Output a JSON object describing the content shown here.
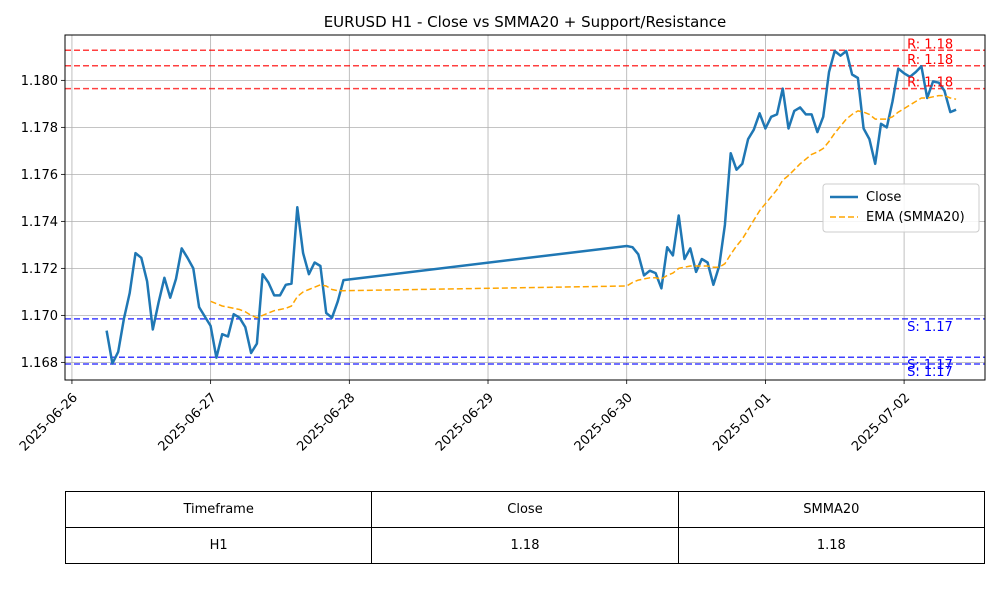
{
  "chart_data": {
    "type": "line",
    "title": "EURUSD H1 - Close vs SMMA20 + Support/Resistance",
    "xlabel": "",
    "ylabel": "",
    "xlim": [
      "2025-06-25T22:48",
      "2025-07-02T14:00"
    ],
    "ylim": [
      1.16725,
      1.18193
    ],
    "grid": true,
    "legend_position": "center-right",
    "x_ticks": [
      "2025-06-26",
      "2025-06-27",
      "2025-06-28",
      "2025-06-29",
      "2025-06-30",
      "2025-07-01",
      "2025-07-02"
    ],
    "y_ticks": [
      "1.168",
      "1.170",
      "1.172",
      "1.174",
      "1.176",
      "1.178",
      "1.180"
    ],
    "series": [
      {
        "name": "Close",
        "style": "solid",
        "color": "#1f77b4",
        "points": [
          [
            "2025-06-26T06:00",
            1.16935
          ],
          [
            "2025-06-26T07:00",
            1.16795
          ],
          [
            "2025-06-26T08:00",
            1.16845
          ],
          [
            "2025-06-26T09:00",
            1.16985
          ],
          [
            "2025-06-26T10:00",
            1.17095
          ],
          [
            "2025-06-26T11:00",
            1.17265
          ],
          [
            "2025-06-26T12:00",
            1.17245
          ],
          [
            "2025-06-26T13:00",
            1.17145
          ],
          [
            "2025-06-26T14:00",
            1.1694
          ],
          [
            "2025-06-26T15:00",
            1.17055
          ],
          [
            "2025-06-26T16:00",
            1.1716
          ],
          [
            "2025-06-26T17:00",
            1.17075
          ],
          [
            "2025-06-26T18:00",
            1.17155
          ],
          [
            "2025-06-26T19:00",
            1.17285
          ],
          [
            "2025-06-26T20:00",
            1.17245
          ],
          [
            "2025-06-26T21:00",
            1.172
          ],
          [
            "2025-06-26T22:00",
            1.17035
          ],
          [
            "2025-06-26T23:00",
            1.16995
          ],
          [
            "2025-06-27T00:00",
            1.16955
          ],
          [
            "2025-06-27T01:00",
            1.1682
          ],
          [
            "2025-06-27T02:00",
            1.1692
          ],
          [
            "2025-06-27T03:00",
            1.1691
          ],
          [
            "2025-06-27T04:00",
            1.17005
          ],
          [
            "2025-06-27T05:00",
            1.1699
          ],
          [
            "2025-06-27T06:00",
            1.1695
          ],
          [
            "2025-06-27T07:00",
            1.1684
          ],
          [
            "2025-06-27T08:00",
            1.1688
          ],
          [
            "2025-06-27T09:00",
            1.17175
          ],
          [
            "2025-06-27T10:00",
            1.1714
          ],
          [
            "2025-06-27T11:00",
            1.17085
          ],
          [
            "2025-06-27T12:00",
            1.17085
          ],
          [
            "2025-06-27T13:00",
            1.1713
          ],
          [
            "2025-06-27T14:00",
            1.17135
          ],
          [
            "2025-06-27T15:00",
            1.1746
          ],
          [
            "2025-06-27T16:00",
            1.17265
          ],
          [
            "2025-06-27T17:00",
            1.17175
          ],
          [
            "2025-06-27T18:00",
            1.17225
          ],
          [
            "2025-06-27T19:00",
            1.1721
          ],
          [
            "2025-06-27T20:00",
            1.1701
          ],
          [
            "2025-06-27T21:00",
            1.1699
          ],
          [
            "2025-06-27T22:00",
            1.1706
          ],
          [
            "2025-06-27T23:00",
            1.1715
          ],
          [
            "2025-06-30T00:00",
            1.17295
          ],
          [
            "2025-06-30T01:00",
            1.1729
          ],
          [
            "2025-06-30T02:00",
            1.1726
          ],
          [
            "2025-06-30T03:00",
            1.1717
          ],
          [
            "2025-06-30T04:00",
            1.1719
          ],
          [
            "2025-06-30T05:00",
            1.1718
          ],
          [
            "2025-06-30T06:00",
            1.17115
          ],
          [
            "2025-06-30T07:00",
            1.1729
          ],
          [
            "2025-06-30T08:00",
            1.17255
          ],
          [
            "2025-06-30T09:00",
            1.17425
          ],
          [
            "2025-06-30T10:00",
            1.1724
          ],
          [
            "2025-06-30T11:00",
            1.17285
          ],
          [
            "2025-06-30T12:00",
            1.17185
          ],
          [
            "2025-06-30T13:00",
            1.1724
          ],
          [
            "2025-06-30T14:00",
            1.17225
          ],
          [
            "2025-06-30T15:00",
            1.1713
          ],
          [
            "2025-06-30T16:00",
            1.1721
          ],
          [
            "2025-06-30T17:00",
            1.17385
          ],
          [
            "2025-06-30T18:00",
            1.1769
          ],
          [
            "2025-06-30T19:00",
            1.1762
          ],
          [
            "2025-06-30T20:00",
            1.17645
          ],
          [
            "2025-06-30T21:00",
            1.1775
          ],
          [
            "2025-06-30T22:00",
            1.1779
          ],
          [
            "2025-06-30T23:00",
            1.1786
          ],
          [
            "2025-07-01T00:00",
            1.17795
          ],
          [
            "2025-07-01T01:00",
            1.17845
          ],
          [
            "2025-07-01T02:00",
            1.17855
          ],
          [
            "2025-07-01T03:00",
            1.17965
          ],
          [
            "2025-07-01T04:00",
            1.17795
          ],
          [
            "2025-07-01T05:00",
            1.1787
          ],
          [
            "2025-07-01T06:00",
            1.17885
          ],
          [
            "2025-07-01T07:00",
            1.17855
          ],
          [
            "2025-07-01T08:00",
            1.17855
          ],
          [
            "2025-07-01T09:00",
            1.1778
          ],
          [
            "2025-07-01T10:00",
            1.17845
          ],
          [
            "2025-07-01T11:00",
            1.18035
          ],
          [
            "2025-07-01T12:00",
            1.18125
          ],
          [
            "2025-07-01T13:00",
            1.18105
          ],
          [
            "2025-07-01T14:00",
            1.18125
          ],
          [
            "2025-07-01T15:00",
            1.18025
          ],
          [
            "2025-07-01T16:00",
            1.1801
          ],
          [
            "2025-07-01T17:00",
            1.17795
          ],
          [
            "2025-07-01T18:00",
            1.1775
          ],
          [
            "2025-07-01T19:00",
            1.17645
          ],
          [
            "2025-07-01T20:00",
            1.17815
          ],
          [
            "2025-07-01T21:00",
            1.178
          ],
          [
            "2025-07-01T22:00",
            1.1791
          ],
          [
            "2025-07-01T23:00",
            1.1805
          ],
          [
            "2025-07-02T00:00",
            1.1803
          ],
          [
            "2025-07-02T01:00",
            1.18015
          ],
          [
            "2025-07-02T02:00",
            1.18035
          ],
          [
            "2025-07-02T03:00",
            1.1806
          ],
          [
            "2025-07-02T04:00",
            1.17925
          ],
          [
            "2025-07-02T05:00",
            1.17995
          ],
          [
            "2025-07-02T06:00",
            1.1799
          ],
          [
            "2025-07-02T07:00",
            1.17955
          ],
          [
            "2025-07-02T08:00",
            1.17865
          ],
          [
            "2025-07-02T09:00",
            1.17875
          ]
        ]
      },
      {
        "name": "EMA (SMMA20)",
        "style": "dashed",
        "color": "#ffa500",
        "points": [
          [
            "2025-06-27T00:00",
            1.1706
          ],
          [
            "2025-06-27T01:00",
            1.1705
          ],
          [
            "2025-06-27T02:00",
            1.1704
          ],
          [
            "2025-06-27T03:00",
            1.17035
          ],
          [
            "2025-06-27T04:00",
            1.1703
          ],
          [
            "2025-06-27T05:00",
            1.17025
          ],
          [
            "2025-06-27T06:00",
            1.17015
          ],
          [
            "2025-06-27T07:00",
            1.17
          ],
          [
            "2025-06-27T08:00",
            1.1699
          ],
          [
            "2025-06-27T09:00",
            1.17
          ],
          [
            "2025-06-27T10:00",
            1.1701
          ],
          [
            "2025-06-27T11:00",
            1.1702
          ],
          [
            "2025-06-27T12:00",
            1.17025
          ],
          [
            "2025-06-27T13:00",
            1.1703
          ],
          [
            "2025-06-27T14:00",
            1.1704
          ],
          [
            "2025-06-27T15:00",
            1.1708
          ],
          [
            "2025-06-27T16:00",
            1.171
          ],
          [
            "2025-06-27T17:00",
            1.1711
          ],
          [
            "2025-06-27T18:00",
            1.1712
          ],
          [
            "2025-06-27T19:00",
            1.1713
          ],
          [
            "2025-06-27T20:00",
            1.17125
          ],
          [
            "2025-06-27T21:00",
            1.1711
          ],
          [
            "2025-06-27T22:00",
            1.17105
          ],
          [
            "2025-06-27T23:00",
            1.17105
          ],
          [
            "2025-06-30T00:00",
            1.17125
          ],
          [
            "2025-06-30T01:00",
            1.1714
          ],
          [
            "2025-06-30T02:00",
            1.1715
          ],
          [
            "2025-06-30T03:00",
            1.17155
          ],
          [
            "2025-06-30T04:00",
            1.1716
          ],
          [
            "2025-06-30T05:00",
            1.1716
          ],
          [
            "2025-06-30T06:00",
            1.17155
          ],
          [
            "2025-06-30T07:00",
            1.1717
          ],
          [
            "2025-06-30T08:00",
            1.1718
          ],
          [
            "2025-06-30T09:00",
            1.172
          ],
          [
            "2025-06-30T10:00",
            1.17205
          ],
          [
            "2025-06-30T11:00",
            1.1721
          ],
          [
            "2025-06-30T12:00",
            1.1721
          ],
          [
            "2025-06-30T13:00",
            1.1721
          ],
          [
            "2025-06-30T14:00",
            1.1721
          ],
          [
            "2025-06-30T15:00",
            1.17205
          ],
          [
            "2025-06-30T16:00",
            1.17205
          ],
          [
            "2025-06-30T17:00",
            1.1722
          ],
          [
            "2025-06-30T18:00",
            1.1726
          ],
          [
            "2025-06-30T19:00",
            1.17295
          ],
          [
            "2025-06-30T20:00",
            1.17325
          ],
          [
            "2025-06-30T21:00",
            1.17365
          ],
          [
            "2025-06-30T22:00",
            1.17405
          ],
          [
            "2025-06-30T23:00",
            1.17445
          ],
          [
            "2025-07-01T00:00",
            1.17475
          ],
          [
            "2025-07-01T01:00",
            1.17505
          ],
          [
            "2025-07-01T02:00",
            1.17535
          ],
          [
            "2025-07-01T03:00",
            1.17575
          ],
          [
            "2025-07-01T04:00",
            1.17595
          ],
          [
            "2025-07-01T05:00",
            1.1762
          ],
          [
            "2025-07-01T06:00",
            1.17645
          ],
          [
            "2025-07-01T07:00",
            1.17665
          ],
          [
            "2025-07-01T08:00",
            1.17685
          ],
          [
            "2025-07-01T09:00",
            1.17695
          ],
          [
            "2025-07-01T10:00",
            1.1771
          ],
          [
            "2025-07-01T11:00",
            1.1774
          ],
          [
            "2025-07-01T12:00",
            1.17775
          ],
          [
            "2025-07-01T13:00",
            1.17805
          ],
          [
            "2025-07-01T14:00",
            1.17835
          ],
          [
            "2025-07-01T15:00",
            1.17855
          ],
          [
            "2025-07-01T16:00",
            1.1787
          ],
          [
            "2025-07-01T17:00",
            1.17865
          ],
          [
            "2025-07-01T18:00",
            1.17855
          ],
          [
            "2025-07-01T19:00",
            1.17835
          ],
          [
            "2025-07-01T20:00",
            1.17835
          ],
          [
            "2025-07-01T21:00",
            1.17835
          ],
          [
            "2025-07-01T22:00",
            1.17845
          ],
          [
            "2025-07-01T23:00",
            1.17865
          ],
          [
            "2025-07-02T00:00",
            1.1788
          ],
          [
            "2025-07-02T01:00",
            1.17895
          ],
          [
            "2025-07-02T02:00",
            1.1791
          ],
          [
            "2025-07-02T03:00",
            1.17925
          ],
          [
            "2025-07-02T04:00",
            1.17925
          ],
          [
            "2025-07-02T05:00",
            1.1793
          ],
          [
            "2025-07-02T06:00",
            1.17935
          ],
          [
            "2025-07-02T07:00",
            1.17935
          ],
          [
            "2025-07-02T08:00",
            1.17925
          ],
          [
            "2025-07-02T09:00",
            1.1792
          ]
        ]
      }
    ],
    "resistance": {
      "color": "#ff0000",
      "levels": [
        {
          "value": 1.18128,
          "label": "R: 1.18"
        },
        {
          "value": 1.18062,
          "label": "R: 1.18"
        },
        {
          "value": 1.17965,
          "label": "R: 1.18"
        }
      ]
    },
    "support": {
      "color": "#0000ff",
      "levels": [
        {
          "value": 1.16985,
          "label": "S: 1.17"
        },
        {
          "value": 1.16822,
          "label": "S: 1.17"
        },
        {
          "value": 1.16793,
          "label": "S: 1.17"
        }
      ]
    }
  },
  "summary_table": {
    "headers": [
      "Timeframe",
      "Close",
      "SMMA20"
    ],
    "row": [
      "H1",
      "1.18",
      "1.18"
    ]
  }
}
